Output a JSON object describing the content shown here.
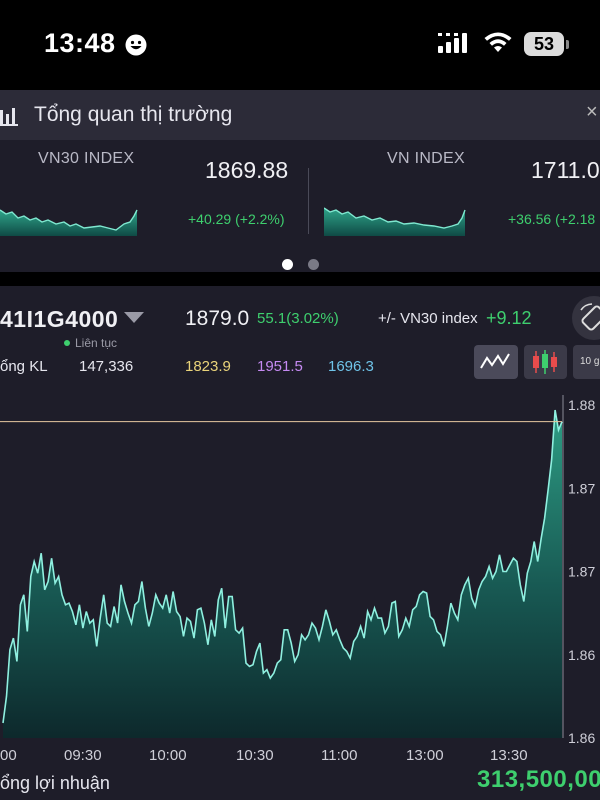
{
  "status_bar": {
    "time": "13:48",
    "battery": "53"
  },
  "overview": {
    "title": "Tổng quan thị trường",
    "close_glyph": "×"
  },
  "indices": [
    {
      "name": "VN30 INDEX",
      "value": "1869.88",
      "change": "+40.29 (+2.2%)"
    },
    {
      "name": "VN INDEX",
      "value": "1711.0",
      "change": "+36.56 (+2.18"
    }
  ],
  "pager": {
    "count": 2,
    "active": 0
  },
  "instrument": {
    "symbol": "41I1G4000",
    "live_label": "Liên tục",
    "price": "1879.0",
    "price_change": "55.1(3.02%)",
    "basis_label": "+/- VN30 index",
    "basis_value": "+9.12",
    "volume_label": "ổng KL",
    "volume_value": "147,336",
    "ceiling_like_1": "1823.9",
    "ceiling_like_2": "1951.5",
    "ceiling_like_3": "1696.3",
    "level_colors": [
      "#e9d37a",
      "#c58af2",
      "#6fc3e8"
    ],
    "tools": [
      "line-chart-icon",
      "candlestick-icon",
      "10 g"
    ]
  },
  "chart_data": {
    "type": "area",
    "x_tick_labels": [
      "00",
      "09:30",
      "10:00",
      "10:30",
      "11:00",
      "13:00",
      "13:30"
    ],
    "y_tick_labels": [
      "1.88",
      "1.87",
      "1.87",
      "1.86",
      "1.86"
    ],
    "y_range": [
      1860,
      1880
    ],
    "reference_line": 1879,
    "values": [
      1860.9,
      1862.5,
      1865.3,
      1866.0,
      1864.6,
      1868.0,
      1868.6,
      1866.4,
      1869.7,
      1870.6,
      1869.9,
      1871.1,
      1868.9,
      1869.4,
      1870.8,
      1869.3,
      1869.7,
      1868.6,
      1868.0,
      1868.1,
      1867.6,
      1866.8,
      1868.0,
      1866.6,
      1867.6,
      1866.9,
      1867.1,
      1865.5,
      1867.2,
      1868.6,
      1866.9,
      1866.7,
      1867.9,
      1866.9,
      1869.2,
      1868.2,
      1867.5,
      1866.9,
      1868.0,
      1868.2,
      1869.4,
      1867.8,
      1866.7,
      1867.5,
      1868.6,
      1868.1,
      1867.8,
      1868.6,
      1867.5,
      1868.8,
      1867.6,
      1867.3,
      1866.1,
      1867.2,
      1867.0,
      1866.0,
      1867.7,
      1867.8,
      1866.9,
      1865.6,
      1867.1,
      1866.1,
      1868.3,
      1869.0,
      1866.6,
      1868.5,
      1868.5,
      1866.5,
      1866.3,
      1866.6,
      1864.5,
      1864.3,
      1864.4,
      1865.2,
      1865.7,
      1863.9,
      1864.1,
      1863.6,
      1863.9,
      1864.5,
      1864.7,
      1866.5,
      1866.5,
      1865.7,
      1864.6,
      1865.0,
      1866.2,
      1865.9,
      1866.2,
      1866.9,
      1866.6,
      1865.9,
      1866.7,
      1867.7,
      1867.0,
      1866.2,
      1866.5,
      1865.9,
      1865.4,
      1865.2,
      1864.8,
      1865.8,
      1866.1,
      1866.7,
      1866.0,
      1867.6,
      1867.1,
      1867.8,
      1867.2,
      1867.2,
      1866.3,
      1866.7,
      1868.1,
      1868.2,
      1866.1,
      1866.5,
      1867.2,
      1866.7,
      1867.7,
      1867.9,
      1868.6,
      1868.8,
      1868.7,
      1867.3,
      1867.1,
      1866.4,
      1866.2,
      1865.5,
      1866.7,
      1868.1,
      1867.5,
      1867.1,
      1868.6,
      1869.2,
      1869.6,
      1868.4,
      1867.9,
      1868.9,
      1869.4,
      1869.7,
      1870.3,
      1869.6,
      1870.0,
      1871.0,
      1870.0,
      1870.0,
      1870.4,
      1870.8,
      1870.6,
      1869.2,
      1868.2,
      1869.9,
      1870.6,
      1871.8,
      1870.6,
      1872.0,
      1873.2,
      1874.9,
      1876.7,
      1879.7,
      1878.5,
      1879.0
    ]
  },
  "profit": {
    "label": "ổng lợi nhuận",
    "value": "313,500,00"
  }
}
